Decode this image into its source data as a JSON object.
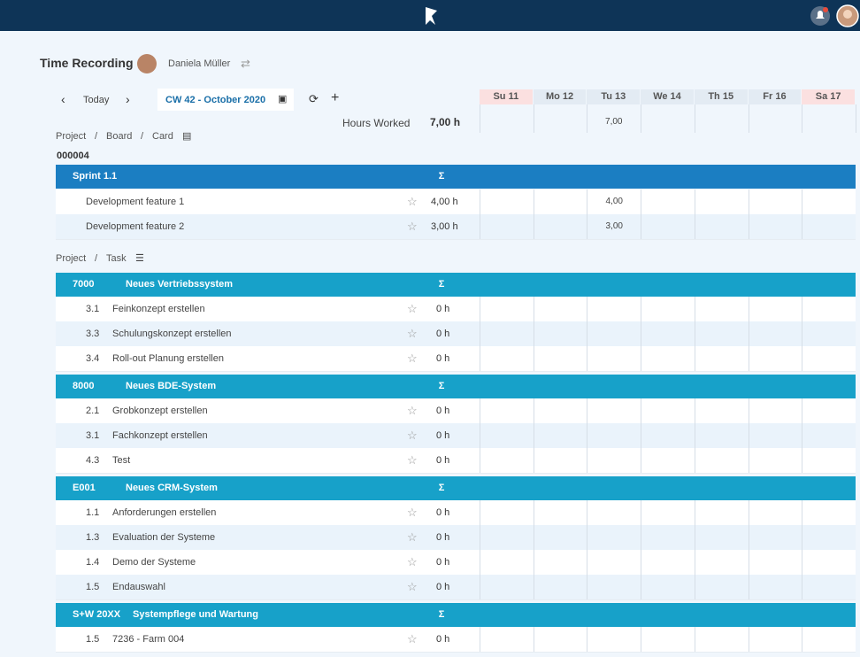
{
  "header": {
    "title": "Time Recording",
    "user": "Daniela Müller"
  },
  "toolbar": {
    "today": "Today",
    "week": "CW 42 - October 2020",
    "hours_label": "Hours Worked",
    "hours_total": "7,00 h"
  },
  "days": [
    {
      "label": "Su 11",
      "weekend": true
    },
    {
      "label": "Mo 12",
      "weekend": false
    },
    {
      "label": "Tu 13",
      "weekend": false
    },
    {
      "label": "We 14",
      "weekend": false
    },
    {
      "label": "Th 15",
      "weekend": false
    },
    {
      "label": "Fr 16",
      "weekend": false
    },
    {
      "label": "Sa 17",
      "weekend": true
    }
  ],
  "day_totals": [
    null,
    null,
    "7,00",
    null,
    null,
    null,
    null
  ],
  "separator": "/",
  "sum_symbol": "Σ",
  "card_section": {
    "path": [
      "Project",
      "Board",
      "Card"
    ],
    "id": "000004",
    "group": {
      "title": "Sprint 1.1",
      "rows": [
        {
          "label": "Development feature 1",
          "total": "4,00 h",
          "days": [
            null,
            null,
            "4,00",
            null,
            null,
            null,
            null
          ]
        },
        {
          "label": "Development feature 2",
          "total": "3,00 h",
          "days": [
            null,
            null,
            "3,00",
            null,
            null,
            null,
            null
          ]
        }
      ]
    }
  },
  "task_section": {
    "path": [
      "Project",
      "Task"
    ],
    "groups": [
      {
        "code": "7000",
        "title": "Neues Vertriebssystem",
        "rows": [
          {
            "num": "3.1",
            "label": "Feinkonzept erstellen",
            "total": "0 h"
          },
          {
            "num": "3.3",
            "label": "Schulungskonzept erstellen",
            "total": "0 h"
          },
          {
            "num": "3.4",
            "label": "Roll-out Planung erstellen",
            "total": "0 h"
          }
        ]
      },
      {
        "code": "8000",
        "title": "Neues BDE-System",
        "rows": [
          {
            "num": "2.1",
            "label": "Grobkonzept erstellen",
            "total": "0 h"
          },
          {
            "num": "3.1",
            "label": "Fachkonzept erstellen",
            "total": "0 h"
          },
          {
            "num": "4.3",
            "label": "Test",
            "total": "0 h"
          }
        ]
      },
      {
        "code": "E001",
        "title": "Neues CRM-System",
        "rows": [
          {
            "num": "1.1",
            "label": "Anforderungen erstellen",
            "total": "0 h"
          },
          {
            "num": "1.3",
            "label": "Evaluation der Systeme",
            "total": "0 h"
          },
          {
            "num": "1.4",
            "label": "Demo der Systeme",
            "total": "0 h"
          },
          {
            "num": "1.5",
            "label": "Endauswahl",
            "total": "0 h"
          }
        ]
      },
      {
        "code": "S+W 20XX",
        "title": "Systempflege und Wartung",
        "rows": [
          {
            "num": "1.5",
            "label": "7236 - Farm 004",
            "total": "0 h"
          }
        ]
      }
    ]
  }
}
